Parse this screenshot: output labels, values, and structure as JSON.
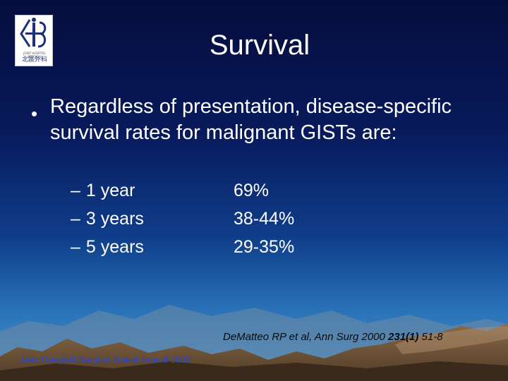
{
  "logo": {
    "caption_en": "JOINT HOSPITAL SURGICAL",
    "caption_zh": "北區外科"
  },
  "slide": {
    "title": "Survival",
    "bullet": "Regardless of presentation, disease-specific survival rates for malignant GISTs are:",
    "rates": [
      {
        "dash": "–",
        "period": "1 year",
        "rate": "69%"
      },
      {
        "dash": "–",
        "period": "3 years",
        "rate": "38-44%"
      },
      {
        "dash": "–",
        "period": "5 years",
        "rate": "29-35%"
      }
    ],
    "citation": {
      "text": "DeMatteo RP et al, Ann Surg 2000 ",
      "volume": "231(1)",
      "pages": " 51-8"
    },
    "footer": "Joint Hospital Surgical Grand Round 2003"
  }
}
